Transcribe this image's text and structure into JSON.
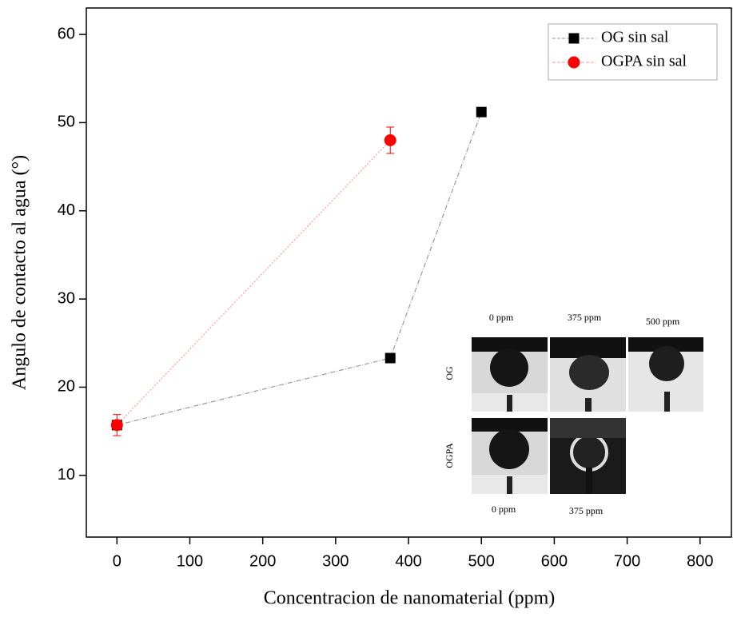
{
  "chart_data": {
    "type": "line",
    "xlabel": "Concentracion de nanomaterial (ppm)",
    "ylabel": "Angulo de contacto al agua (°)",
    "xlim": [
      -42,
      843
    ],
    "ylim": [
      3,
      63
    ],
    "xticks": [
      0,
      100,
      200,
      300,
      400,
      500,
      600,
      700,
      800
    ],
    "yticks": [
      10,
      20,
      30,
      40,
      50,
      60
    ],
    "legend": "upper right",
    "series": [
      {
        "name": "OG sin sal",
        "color": "#000000",
        "line_color": "#999999",
        "marker": "square",
        "x": [
          0,
          375,
          500
        ],
        "values": [
          15.7,
          23.3,
          51.2
        ]
      },
      {
        "name": "OGPA sin sal",
        "color": "#ff0000",
        "line_color": "#ff9999",
        "marker": "circle",
        "x": [
          0,
          375
        ],
        "values": [
          15.7,
          48.0
        ],
        "errors": [
          1.2,
          1.5
        ]
      }
    ],
    "inset": {
      "top_labels": [
        "0 ppm",
        "375 ppm",
        "500 ppm"
      ],
      "row_labels": [
        "OG",
        "OGPA"
      ],
      "bottom_labels": [
        "0 ppm",
        "375 ppm"
      ]
    }
  }
}
